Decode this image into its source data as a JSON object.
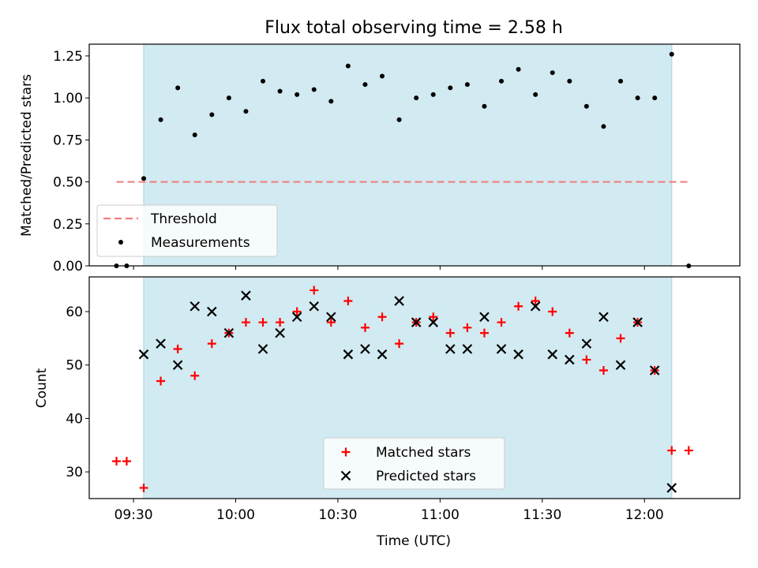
{
  "chart_data": [
    {
      "type": "scatter",
      "title": "Flux total observing time = 2.58 h",
      "xlabel": "",
      "ylabel": "Matched/Predicted stars",
      "xlim": [
        "09:17",
        "12:28"
      ],
      "ylim": [
        0,
        1.32
      ],
      "yticks": [
        0.0,
        0.25,
        0.5,
        0.75,
        1.0,
        1.25
      ],
      "ytick_labels": [
        "0.00",
        "0.25",
        "0.50",
        "0.75",
        "1.00",
        "1.25"
      ],
      "shaded_region": {
        "start": "09:33",
        "end": "12:08",
        "color": "#add8e6"
      },
      "threshold": {
        "name": "Threshold",
        "value": 0.5,
        "x_start": "09:25",
        "x_end": "12:13",
        "color": "#f08080",
        "style": "dashed"
      },
      "series": [
        {
          "name": "Measurements",
          "color": "#000000",
          "marker": "dot",
          "points": [
            [
              "09:25",
              0.0
            ],
            [
              "09:28",
              0.0
            ],
            [
              "09:33",
              0.52
            ],
            [
              "09:38",
              0.87
            ],
            [
              "09:43",
              1.06
            ],
            [
              "09:48",
              0.78
            ],
            [
              "09:53",
              0.9
            ],
            [
              "09:58",
              1.0
            ],
            [
              "10:03",
              0.92
            ],
            [
              "10:08",
              1.1
            ],
            [
              "10:13",
              1.04
            ],
            [
              "10:18",
              1.02
            ],
            [
              "10:23",
              1.05
            ],
            [
              "10:28",
              0.98
            ],
            [
              "10:33",
              1.19
            ],
            [
              "10:38",
              1.08
            ],
            [
              "10:43",
              1.13
            ],
            [
              "10:48",
              0.87
            ],
            [
              "10:53",
              1.0
            ],
            [
              "10:58",
              1.02
            ],
            [
              "11:03",
              1.06
            ],
            [
              "11:08",
              1.08
            ],
            [
              "11:13",
              0.95
            ],
            [
              "11:18",
              1.1
            ],
            [
              "11:23",
              1.17
            ],
            [
              "11:28",
              1.02
            ],
            [
              "11:33",
              1.15
            ],
            [
              "11:38",
              1.1
            ],
            [
              "11:43",
              0.95
            ],
            [
              "11:48",
              0.83
            ],
            [
              "11:53",
              1.1
            ],
            [
              "11:58",
              1.0
            ],
            [
              "12:03",
              1.0
            ],
            [
              "12:08",
              1.26
            ],
            [
              "12:13",
              0.0
            ]
          ]
        }
      ],
      "legend": {
        "position": "lower-left",
        "entries": [
          "Threshold",
          "Measurements"
        ]
      }
    },
    {
      "type": "scatter",
      "title": "",
      "xlabel": "Time (UTC)",
      "ylabel": "Count",
      "xlim": [
        "09:17",
        "12:28"
      ],
      "ylim": [
        25,
        66.5
      ],
      "yticks": [
        30,
        40,
        50,
        60
      ],
      "ytick_labels": [
        "30",
        "40",
        "50",
        "60"
      ],
      "xticks": [
        "09:30",
        "10:00",
        "10:30",
        "11:00",
        "11:30",
        "12:00"
      ],
      "xtick_labels": [
        "09:30",
        "10:00",
        "10:30",
        "11:00",
        "11:30",
        "12:00"
      ],
      "shaded_region": {
        "start": "09:33",
        "end": "12:08",
        "color": "#add8e6"
      },
      "series": [
        {
          "name": "Matched stars",
          "color": "#ff0000",
          "marker": "plus",
          "points": [
            [
              "09:25",
              32
            ],
            [
              "09:28",
              32
            ],
            [
              "09:33",
              27
            ],
            [
              "09:38",
              47
            ],
            [
              "09:43",
              53
            ],
            [
              "09:48",
              48
            ],
            [
              "09:53",
              54
            ],
            [
              "09:58",
              56
            ],
            [
              "10:03",
              58
            ],
            [
              "10:08",
              58
            ],
            [
              "10:13",
              58
            ],
            [
              "10:18",
              60
            ],
            [
              "10:23",
              64
            ],
            [
              "10:28",
              58
            ],
            [
              "10:33",
              62
            ],
            [
              "10:38",
              57
            ],
            [
              "10:43",
              59
            ],
            [
              "10:48",
              54
            ],
            [
              "10:53",
              58
            ],
            [
              "10:58",
              59
            ],
            [
              "11:03",
              56
            ],
            [
              "11:08",
              57
            ],
            [
              "11:13",
              56
            ],
            [
              "11:18",
              58
            ],
            [
              "11:23",
              61
            ],
            [
              "11:28",
              62
            ],
            [
              "11:33",
              60
            ],
            [
              "11:38",
              56
            ],
            [
              "11:43",
              51
            ],
            [
              "11:48",
              49
            ],
            [
              "11:53",
              55
            ],
            [
              "11:58",
              58
            ],
            [
              "12:03",
              49
            ],
            [
              "12:08",
              34
            ],
            [
              "12:13",
              34
            ]
          ]
        },
        {
          "name": "Predicted stars",
          "color": "#000000",
          "marker": "x",
          "points": [
            [
              "09:33",
              52
            ],
            [
              "09:38",
              54
            ],
            [
              "09:43",
              50
            ],
            [
              "09:48",
              61
            ],
            [
              "09:53",
              60
            ],
            [
              "09:58",
              56
            ],
            [
              "10:03",
              63
            ],
            [
              "10:08",
              53
            ],
            [
              "10:13",
              56
            ],
            [
              "10:18",
              59
            ],
            [
              "10:23",
              61
            ],
            [
              "10:28",
              59
            ],
            [
              "10:33",
              52
            ],
            [
              "10:38",
              53
            ],
            [
              "10:43",
              52
            ],
            [
              "10:48",
              62
            ],
            [
              "10:53",
              58
            ],
            [
              "10:58",
              58
            ],
            [
              "11:03",
              53
            ],
            [
              "11:08",
              53
            ],
            [
              "11:13",
              59
            ],
            [
              "11:18",
              53
            ],
            [
              "11:23",
              52
            ],
            [
              "11:28",
              61
            ],
            [
              "11:33",
              52
            ],
            [
              "11:38",
              51
            ],
            [
              "11:43",
              54
            ],
            [
              "11:48",
              59
            ],
            [
              "11:53",
              50
            ],
            [
              "11:58",
              58
            ],
            [
              "12:03",
              49
            ],
            [
              "12:08",
              27
            ]
          ]
        }
      ],
      "legend": {
        "position": "lower-center",
        "entries": [
          "Matched stars",
          "Predicted stars"
        ]
      }
    }
  ]
}
